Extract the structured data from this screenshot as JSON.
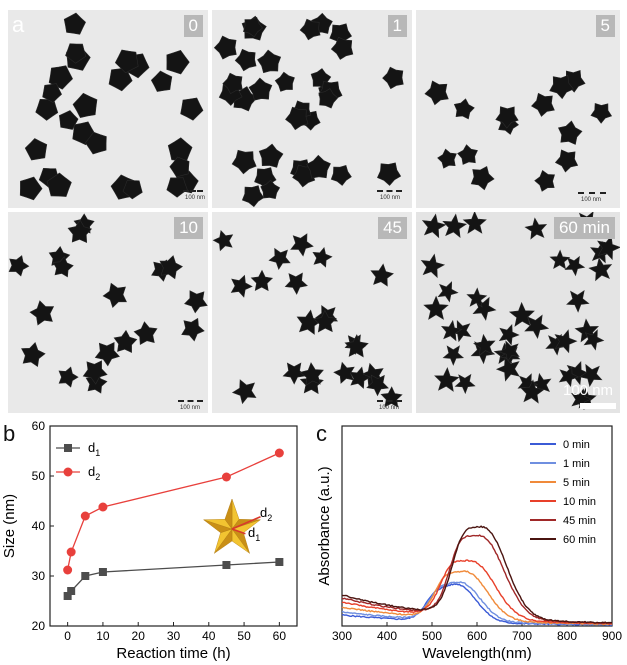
{
  "panels": {
    "a": "a",
    "b": "b",
    "c": "c"
  },
  "tem_panels": [
    {
      "label": "0",
      "scale": "100 nm"
    },
    {
      "label": "1",
      "scale": "100 nm"
    },
    {
      "label": "5",
      "scale": "100 nm"
    },
    {
      "label": "10",
      "scale": "100 nm"
    },
    {
      "label": "45",
      "scale": "100 nm"
    },
    {
      "label": "60 min",
      "scale": "100 nm"
    }
  ],
  "chart_b": {
    "type": "line",
    "xlabel": "Reaction time (h)",
    "ylabel": "Size (nm)",
    "xlim": [
      -5,
      65
    ],
    "ylim": [
      20,
      60
    ],
    "xticks": [
      0,
      10,
      20,
      30,
      40,
      50,
      60
    ],
    "yticks": [
      20,
      30,
      40,
      50,
      60
    ],
    "legend": [
      "d1",
      "d2"
    ],
    "inset_labels": [
      "d2",
      "d1"
    ],
    "series": [
      {
        "name": "d1",
        "color": "#4d4d4d",
        "marker": "square",
        "x": [
          0,
          1,
          5,
          10,
          45,
          60
        ],
        "y": [
          26.0,
          27.0,
          30.0,
          30.8,
          32.2,
          32.8
        ]
      },
      {
        "name": "d2",
        "color": "#e8403c",
        "marker": "circle",
        "x": [
          0,
          1,
          5,
          10,
          45,
          60
        ],
        "y": [
          31.2,
          34.8,
          42.0,
          43.8,
          49.8,
          54.6
        ]
      }
    ]
  },
  "chart_c": {
    "type": "line",
    "xlabel": "Wavelength(nm)",
    "ylabel": "Absorbance (a.u.)",
    "xlim": [
      300,
      900
    ],
    "xticks": [
      300,
      400,
      500,
      600,
      700,
      800,
      900
    ],
    "legend_position": "top-right",
    "series": [
      {
        "name": "0 min",
        "color": "#3b5bd6",
        "base": 0.055,
        "peak": 0.185,
        "center": 558,
        "width": 40
      },
      {
        "name": "1 min",
        "color": "#6f8fe0",
        "base": 0.07,
        "peak": 0.19,
        "center": 565,
        "width": 42
      },
      {
        "name": "5 min",
        "color": "#f08a3a",
        "base": 0.095,
        "peak": 0.235,
        "center": 578,
        "width": 45
      },
      {
        "name": "10 min",
        "color": "#e8402a",
        "base": 0.12,
        "peak": 0.28,
        "center": 592,
        "width": 48
      },
      {
        "name": "45 min",
        "color": "#a02828",
        "base": 0.14,
        "peak": 0.4,
        "center": 612,
        "width": 48
      },
      {
        "name": "60 min",
        "color": "#4a1410",
        "base": 0.155,
        "peak": 0.44,
        "center": 618,
        "width": 47
      }
    ]
  }
}
